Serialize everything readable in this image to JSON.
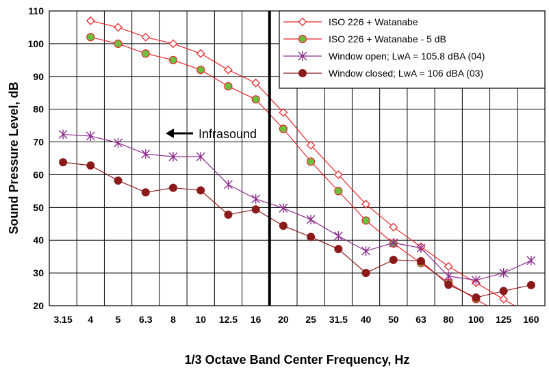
{
  "chart_data": {
    "type": "line",
    "title": "",
    "xlabel": "1/3 Octave Band Center Frequency, Hz",
    "ylabel": "Sound Pressure Level, dB",
    "categories": [
      "3.15",
      "4",
      "5",
      "6.3",
      "8",
      "10",
      "12.5",
      "16",
      "20",
      "25",
      "31.5",
      "40",
      "50",
      "63",
      "80",
      "100",
      "125",
      "160"
    ],
    "ylim": [
      20,
      110
    ],
    "yticks": [
      20,
      30,
      40,
      50,
      60,
      70,
      80,
      90,
      100,
      110
    ],
    "grid": true,
    "legend_position": "top-right",
    "series": [
      {
        "name": "ISO 226 + Watanabe",
        "color": "#e8262a",
        "marker": "diamond-open",
        "values": [
          null,
          107,
          105,
          102,
          100,
          97,
          92,
          88,
          79,
          69,
          60,
          51,
          44,
          38,
          32,
          27,
          22,
          17
        ]
      },
      {
        "name": "ISO 226 + Watanabe - 5 dB",
        "color": "#e8262a",
        "marker": "circle-green",
        "values": [
          null,
          102,
          100,
          97,
          95,
          92,
          87,
          83,
          74,
          64,
          55,
          46,
          39,
          33,
          27,
          22,
          17,
          12
        ]
      },
      {
        "name": "Window open; LwA = 105.8 dBA (04)",
        "color": "#8b2c8e",
        "marker": "asterisk",
        "values": [
          72.3,
          71.8,
          69.7,
          66.3,
          65.5,
          65.5,
          57,
          52.6,
          49.8,
          46.3,
          41.3,
          36.7,
          39.2,
          37.6,
          29,
          27.8,
          30,
          33.8
        ]
      },
      {
        "name": "Window closed; LwA = 106 dBA (03)",
        "color": "#8b1a1a",
        "marker": "circle-filled",
        "values": [
          63.8,
          62.8,
          58.2,
          54.6,
          56,
          55.2,
          47.8,
          49.4,
          44.4,
          41,
          37.3,
          30,
          34,
          33.6,
          26.4,
          22.5,
          24.5,
          26.3
        ]
      }
    ],
    "annotations": [
      {
        "text": "Infrasound",
        "arrow": "left"
      }
    ],
    "vline_between": [
      "16",
      "20"
    ]
  },
  "colors": {
    "marker_fill_green": "#6cbf3f",
    "marker_fill_white": "#ffffff"
  }
}
